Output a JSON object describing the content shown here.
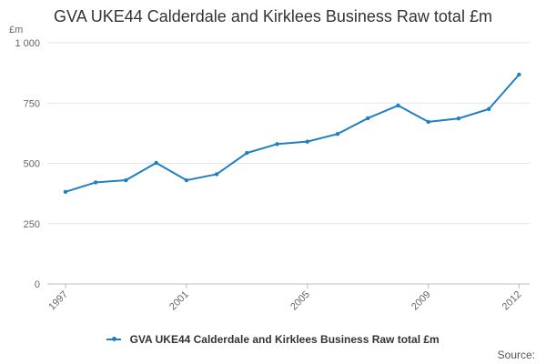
{
  "chart_data": {
    "type": "line",
    "title": "GVA UKE44 Calderdale and Kirklees Business Raw total £m",
    "ylabel": "£m",
    "xlabel": "",
    "ylim": [
      0,
      1000
    ],
    "y_ticks": [
      0,
      250,
      500,
      750,
      1000
    ],
    "y_tick_labels": [
      "0",
      "250",
      "500",
      "750",
      "1 000"
    ],
    "x_ticks": [
      1997,
      2001,
      2005,
      2009,
      2012
    ],
    "x_tick_labels": [
      "1997",
      "2001",
      "2005",
      "2009",
      "2012"
    ],
    "grid": true,
    "legend": "bottom",
    "color": "#1f80c0",
    "x": [
      1997,
      1998,
      1999,
      2000,
      2001,
      2002,
      2003,
      2004,
      2005,
      2006,
      2007,
      2008,
      2009,
      2010,
      2011,
      2012
    ],
    "series": [
      {
        "name": "GVA UKE44 Calderdale and Kirklees Business Raw total £m",
        "values": [
          382,
          421,
          430,
          502,
          430,
          455,
          543,
          580,
          590,
          622,
          687,
          740,
          672,
          686,
          725,
          868
        ]
      }
    ]
  },
  "source_label": "Source:"
}
